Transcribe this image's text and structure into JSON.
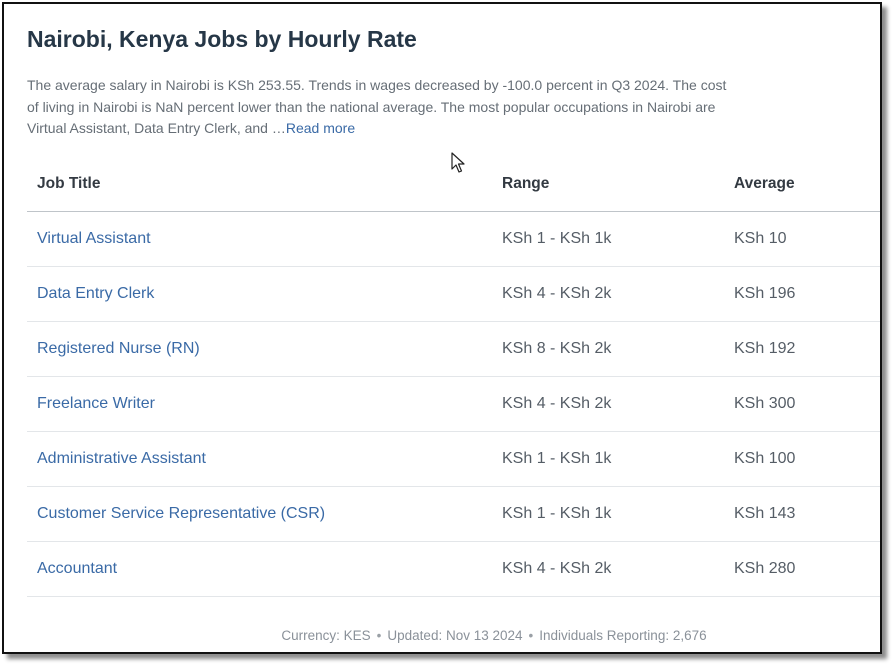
{
  "header": {
    "title": "Nairobi, Kenya Jobs by Hourly Rate"
  },
  "description": {
    "text": "The average salary in Nairobi is KSh 253.55. Trends in wages decreased by -100.0 percent in Q3 2024. The cost of living in Nairobi is NaN percent  lower than the national average. The most popular occupations in Nairobi are Virtual Assistant, Data Entry Clerk, and  …",
    "read_more": "Read more"
  },
  "table": {
    "columns": [
      "Job Title",
      "Range",
      "Average"
    ],
    "rows": [
      {
        "title": "Virtual Assistant",
        "range": "KSh 1 - KSh 1k",
        "average": "KSh 10"
      },
      {
        "title": "Data Entry Clerk",
        "range": "KSh 4 - KSh 2k",
        "average": "KSh 196"
      },
      {
        "title": "Registered Nurse (RN)",
        "range": "KSh 8 - KSh 2k",
        "average": "KSh 192"
      },
      {
        "title": "Freelance Writer",
        "range": "KSh 4 - KSh 2k",
        "average": "KSh 300"
      },
      {
        "title": "Administrative Assistant",
        "range": "KSh 1 - KSh 1k",
        "average": "KSh 100"
      },
      {
        "title": "Customer Service Representative (CSR)",
        "range": "KSh 1 - KSh 1k",
        "average": "KSh 143"
      },
      {
        "title": "Accountant",
        "range": "KSh 4 - KSh 2k",
        "average": "KSh 280"
      }
    ]
  },
  "footer": {
    "currency": "Currency: KES",
    "updated": "Updated: Nov 13 2024",
    "reporting": "Individuals Reporting: 2,676",
    "separator": "•"
  },
  "icons": {
    "cursor": "mouse-pointer-icon"
  }
}
